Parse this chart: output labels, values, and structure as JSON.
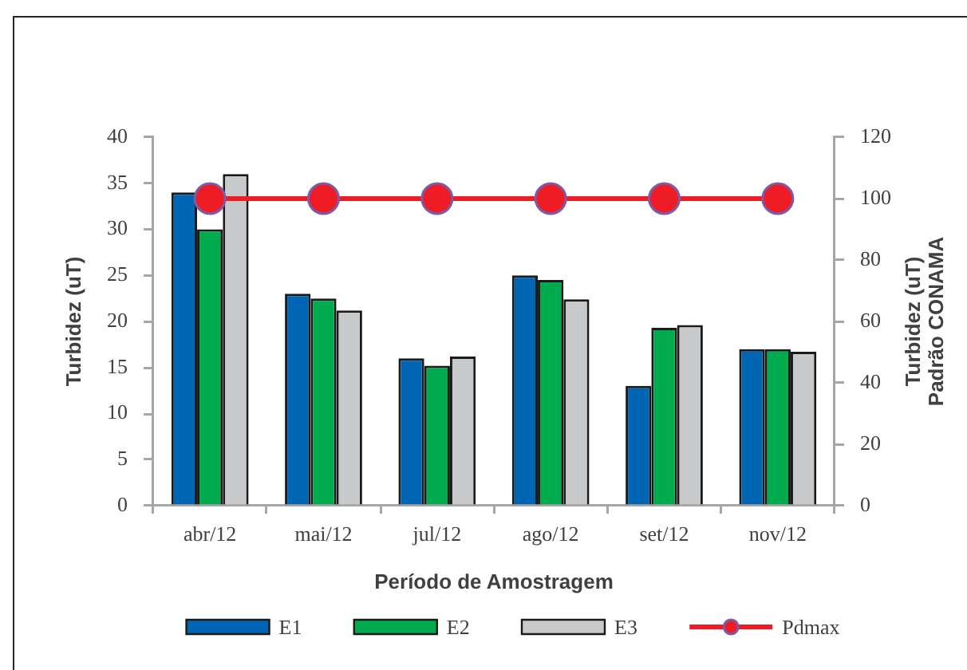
{
  "chart_data": {
    "type": "bar",
    "categories": [
      "abr/12",
      "mai/12",
      "jul/12",
      "ago/12",
      "set/12",
      "nov/12"
    ],
    "series": [
      {
        "name": "E1",
        "color": "#0066b3",
        "values": [
          34,
          23,
          16,
          25,
          13,
          17
        ]
      },
      {
        "name": "E2",
        "color": "#00ab4e",
        "values": [
          30,
          22.5,
          15.2,
          24.5,
          19.3,
          17
        ]
      },
      {
        "name": "E3",
        "color": "#c8c9cb",
        "values": [
          36,
          21.2,
          16.2,
          22.4,
          19.6,
          16.7
        ]
      },
      {
        "name": "Pdmax",
        "type": "line",
        "axis": "y2",
        "marker": "circle",
        "color": "#ee1c25",
        "values": [
          100,
          100,
          100,
          100,
          100,
          100
        ]
      }
    ],
    "xlabel": "Período de Amostragem",
    "ylabel": "Turbidez (uT)",
    "y2label": "Turbidez (uT)\nPadrão CONAMA",
    "ylim": [
      0,
      40
    ],
    "yticks": [
      0,
      5,
      10,
      15,
      20,
      25,
      30,
      35,
      40
    ],
    "y2lim": [
      0,
      120
    ],
    "y2ticks": [
      0,
      20,
      40,
      60,
      80,
      100,
      120
    ],
    "legend": "bottom"
  }
}
